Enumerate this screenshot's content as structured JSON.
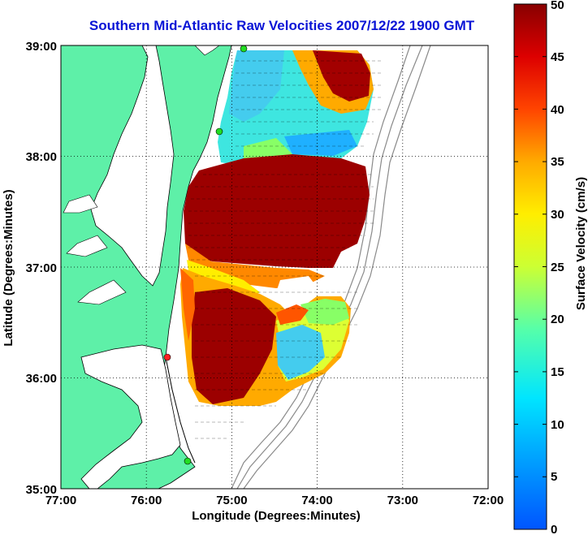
{
  "title": "Southern Mid-Atlantic Raw Velocities 2007/12/22 1900 GMT",
  "map": {
    "xlabel": "Longitude (Degrees:Minutes)",
    "ylabel": "Latitude (Degrees:Minutes)",
    "x_ticks": [
      "77:00",
      "76:00",
      "75:00",
      "74:00",
      "73:00",
      "72:00"
    ],
    "y_ticks": [
      "39:00",
      "38:00",
      "37:00",
      "36:00",
      "35:00"
    ],
    "lon_range": [
      -77,
      -72
    ],
    "lat_range": [
      35,
      39
    ],
    "land_color": "#5ef0a8",
    "station_colors": {
      "active": "#22dd22",
      "inactive": "#ff2222"
    }
  },
  "colorbar": {
    "label": "Surface Velocity (cm/s)",
    "ticks": [
      "0",
      "5",
      "10",
      "15",
      "20",
      "25",
      "30",
      "35",
      "40",
      "45",
      "50"
    ],
    "range": [
      0,
      50
    ]
  }
}
